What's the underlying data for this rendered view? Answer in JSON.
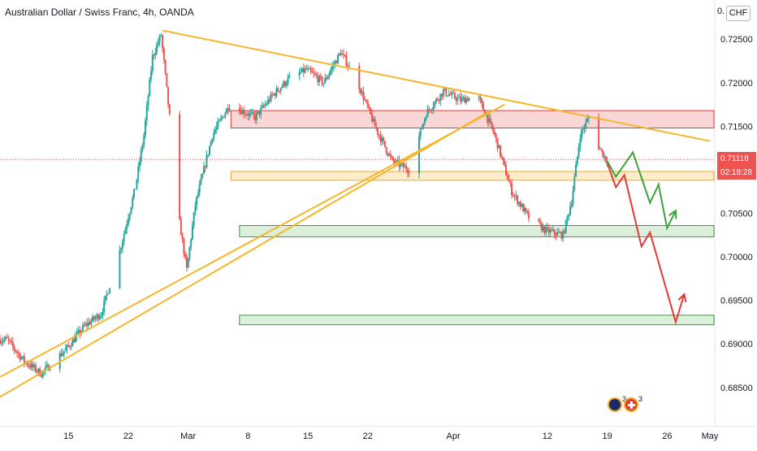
{
  "header": {
    "symbol": "Australian Dollar / Swiss Franc",
    "interval": "4h",
    "exchange": "OANDA"
  },
  "price_axis": {
    "currency": "CHF",
    "top_cut_label": "0.",
    "current_price": "0.71118",
    "countdown": "02:18:28"
  },
  "events": [
    {
      "icon": "au-flag-icon",
      "count": "3"
    },
    {
      "icon": "ch-flag-icon",
      "count": "3"
    }
  ],
  "colors": {
    "up": "#26a69a",
    "down": "#ef5350",
    "trendline": "#f5b62a",
    "resistance_zone": "#f8c9c9",
    "support_zone": "#fde7b6",
    "demand_zone": "#cfe9cf",
    "bear_path": "#e53935",
    "bull_path": "#3aa33a"
  },
  "chart_data": {
    "type": "candlestick",
    "instrument": "AUD/CHF",
    "x_ticks": [
      {
        "label": "15",
        "date": "2021-02-15"
      },
      {
        "label": "22",
        "date": "2021-02-22"
      },
      {
        "label": "Mar",
        "date": "2021-03-01"
      },
      {
        "label": "8",
        "date": "2021-03-08"
      },
      {
        "label": "15",
        "date": "2021-03-15"
      },
      {
        "label": "22",
        "date": "2021-03-22"
      },
      {
        "label": "Apr",
        "date": "2021-04-01"
      },
      {
        "label": "12",
        "date": "2021-04-12"
      },
      {
        "label": "19",
        "date": "2021-04-19"
      },
      {
        "label": "26",
        "date": "2021-04-26"
      },
      {
        "label": "May",
        "date": "2021-05-01"
      }
    ],
    "y_ticks": [
      "0.72500",
      "0.72000",
      "0.71500",
      "0.71000",
      "0.70500",
      "0.70000",
      "0.69500",
      "0.69000",
      "0.68500"
    ],
    "ylim": [
      0.6805,
      0.7295
    ],
    "xlim": [
      "2021-02-07",
      "2021-05-01"
    ],
    "close_path": [
      [
        "2021-02-08",
        0.6905
      ],
      [
        "2021-02-10",
        0.688
      ],
      [
        "2021-02-12",
        0.6866
      ],
      [
        "2021-02-15",
        0.6895
      ],
      [
        "2021-02-17",
        0.692
      ],
      [
        "2021-02-19",
        0.6935
      ],
      [
        "2021-02-21",
        0.7
      ],
      [
        "2021-02-23",
        0.708
      ],
      [
        "2021-02-24",
        0.714
      ],
      [
        "2021-02-25",
        0.723
      ],
      [
        "2021-02-26",
        0.7255
      ],
      [
        "2021-02-27",
        0.716
      ],
      [
        "2021-02-28",
        0.705
      ],
      [
        "2021-03-01",
        0.6985
      ],
      [
        "2021-03-02",
        0.706
      ],
      [
        "2021-03-04",
        0.714
      ],
      [
        "2021-03-06",
        0.7175
      ],
      [
        "2021-03-09",
        0.716
      ],
      [
        "2021-03-11",
        0.7185
      ],
      [
        "2021-03-13",
        0.7205
      ],
      [
        "2021-03-15",
        0.7215
      ],
      [
        "2021-03-17",
        0.72
      ],
      [
        "2021-03-19",
        0.7235
      ],
      [
        "2021-03-21",
        0.72
      ],
      [
        "2021-03-23",
        0.715
      ],
      [
        "2021-03-25",
        0.711
      ],
      [
        "2021-03-27",
        0.71
      ],
      [
        "2021-03-29",
        0.7165
      ],
      [
        "2021-03-31",
        0.719
      ],
      [
        "2021-04-02",
        0.718
      ],
      [
        "2021-04-04",
        0.7185
      ],
      [
        "2021-04-06",
        0.714
      ],
      [
        "2021-04-08",
        0.7075
      ],
      [
        "2021-04-10",
        0.7045
      ],
      [
        "2021-04-12",
        0.703
      ],
      [
        "2021-04-14",
        0.7025
      ],
      [
        "2021-04-15",
        0.7065
      ],
      [
        "2021-04-16",
        0.714
      ],
      [
        "2021-04-17",
        0.716
      ],
      [
        "2021-04-18",
        0.713
      ],
      [
        "2021-04-19",
        0.7112
      ]
    ],
    "zones": [
      {
        "name": "resistance",
        "from": 0.7148,
        "to": 0.7168,
        "x_start": "2021-03-06",
        "color": "resistance_zone"
      },
      {
        "name": "support",
        "from": 0.7088,
        "to": 0.7098,
        "x_start": "2021-03-06",
        "color": "support_zone"
      },
      {
        "name": "demand-upper",
        "from": 0.7023,
        "to": 0.7036,
        "x_start": "2021-03-07",
        "color": "demand_zone"
      },
      {
        "name": "demand-lower",
        "from": 0.6922,
        "to": 0.6933,
        "x_start": "2021-03-07",
        "color": "demand_zone"
      }
    ],
    "trendlines": [
      {
        "name": "descending-resistance",
        "points": [
          [
            "2021-02-26",
            0.726
          ],
          [
            "2021-05-01",
            0.7133
          ]
        ]
      },
      {
        "name": "ascending-support-1",
        "points": [
          [
            "2021-02-07",
            0.6862
          ],
          [
            "2021-04-07",
            0.7175
          ]
        ]
      },
      {
        "name": "ascending-support-2",
        "points": [
          [
            "2021-02-07",
            0.6839
          ],
          [
            "2021-04-05",
            0.7166
          ]
        ]
      }
    ],
    "projections": [
      {
        "name": "bear-path",
        "color": "bear_path",
        "points": [
          [
            "2021-04-19",
            0.7108
          ],
          [
            "2021-04-20",
            0.708
          ],
          [
            "2021-04-21",
            0.7094
          ],
          [
            "2021-04-23",
            0.7012
          ],
          [
            "2021-04-24",
            0.7028
          ],
          [
            "2021-04-27",
            0.6925
          ],
          [
            "2021-04-28",
            0.6957
          ]
        ]
      },
      {
        "name": "bull-path",
        "color": "bull_path",
        "points": [
          [
            "2021-04-19",
            0.711
          ],
          [
            "2021-04-20",
            0.7092
          ],
          [
            "2021-04-22",
            0.712
          ],
          [
            "2021-04-24",
            0.7062
          ],
          [
            "2021-04-25",
            0.7083
          ],
          [
            "2021-04-26",
            0.7033
          ],
          [
            "2021-04-27",
            0.7053
          ]
        ]
      }
    ],
    "current_price": 0.71118,
    "grid": false
  }
}
